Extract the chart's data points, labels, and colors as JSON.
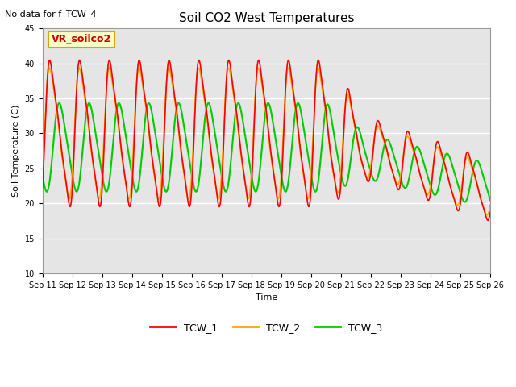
{
  "title": "Soil CO2 West Temperatures",
  "ylabel": "Soil Temperature (C)",
  "xlabel": "Time",
  "annotation_text": "No data for f_TCW_4",
  "legend_box_text": "VR_soilco2",
  "ylim": [
    10,
    45
  ],
  "yticks": [
    10,
    15,
    20,
    25,
    30,
    35,
    40,
    45
  ],
  "background_color": "#e5e5e5",
  "plot_bg_color": "#e5e5e5",
  "x_tick_labels": [
    "Sep 11",
    "Sep 12",
    "Sep 13",
    "Sep 14",
    "Sep 15",
    "Sep 16",
    "Sep 17",
    "Sep 18",
    "Sep 19",
    "Sep 20",
    "Sep 21",
    "Sep 22",
    "Sep 23",
    "Sep 24",
    "Sep 25",
    "Sep 26"
  ],
  "line_colors": {
    "TCW_1": "#ff0000",
    "TCW_2": "#ffa500",
    "TCW_3": "#00cc00"
  },
  "line_widths": {
    "TCW_1": 1.2,
    "TCW_2": 1.2,
    "TCW_3": 1.5
  },
  "figsize": [
    6.4,
    4.8
  ],
  "dpi": 100,
  "title_fontsize": 11,
  "axis_label_fontsize": 8,
  "tick_fontsize": 7,
  "legend_fontsize": 9,
  "annotation_fontsize": 8
}
